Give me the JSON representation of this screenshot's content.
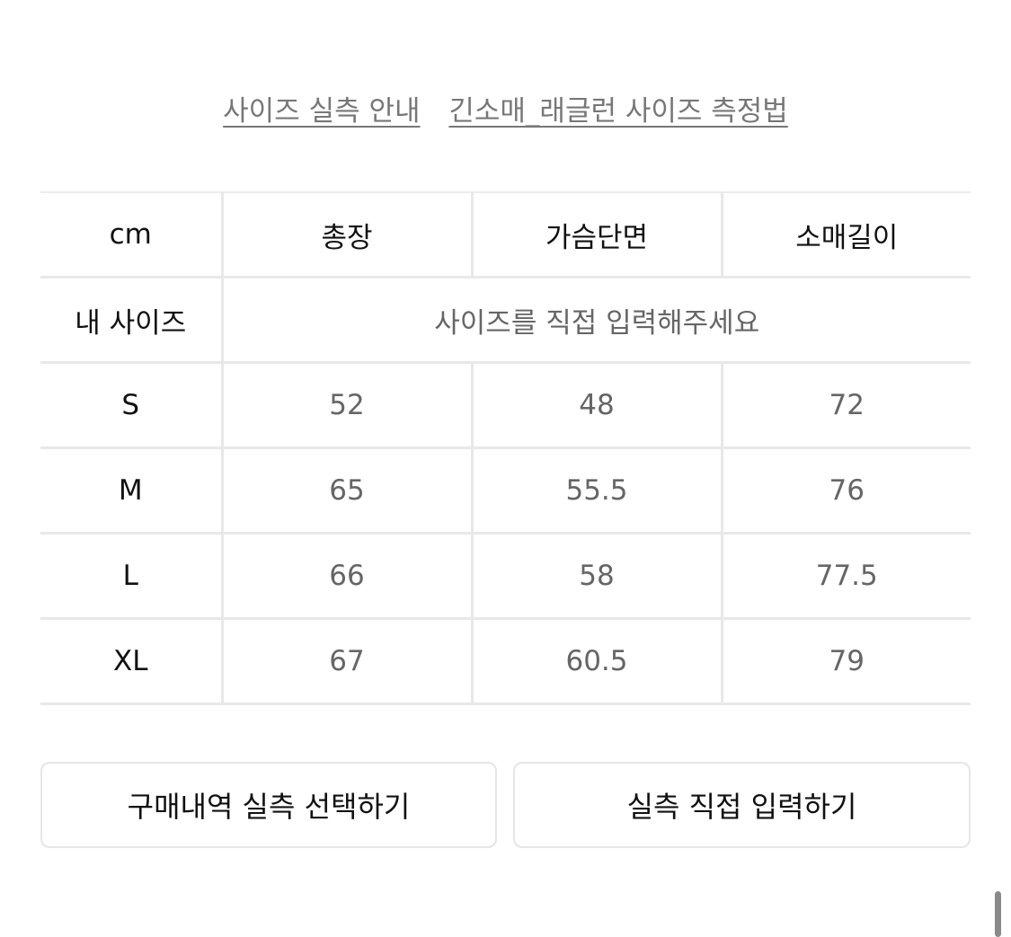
{
  "links": [
    "사이즈 실측 안내",
    "긴소매_래글런 사이즈 측정법"
  ],
  "table": {
    "headers": [
      "cm",
      "총장",
      "가슴단면",
      "소매길이"
    ],
    "my_size": {
      "label": "내 사이즈",
      "placeholder": "사이즈를 직접 입력해주세요"
    },
    "rows": [
      {
        "size": "S",
        "values": [
          "52",
          "48",
          "72"
        ]
      },
      {
        "size": "M",
        "values": [
          "65",
          "55.5",
          "76"
        ]
      },
      {
        "size": "L",
        "values": [
          "66",
          "58",
          "77.5"
        ]
      },
      {
        "size": "XL",
        "values": [
          "67",
          "60.5",
          "79"
        ]
      }
    ]
  },
  "buttons": {
    "select_purchase": "구매내역 실측 선택하기",
    "direct_input": "실측 직접 입력하기"
  }
}
